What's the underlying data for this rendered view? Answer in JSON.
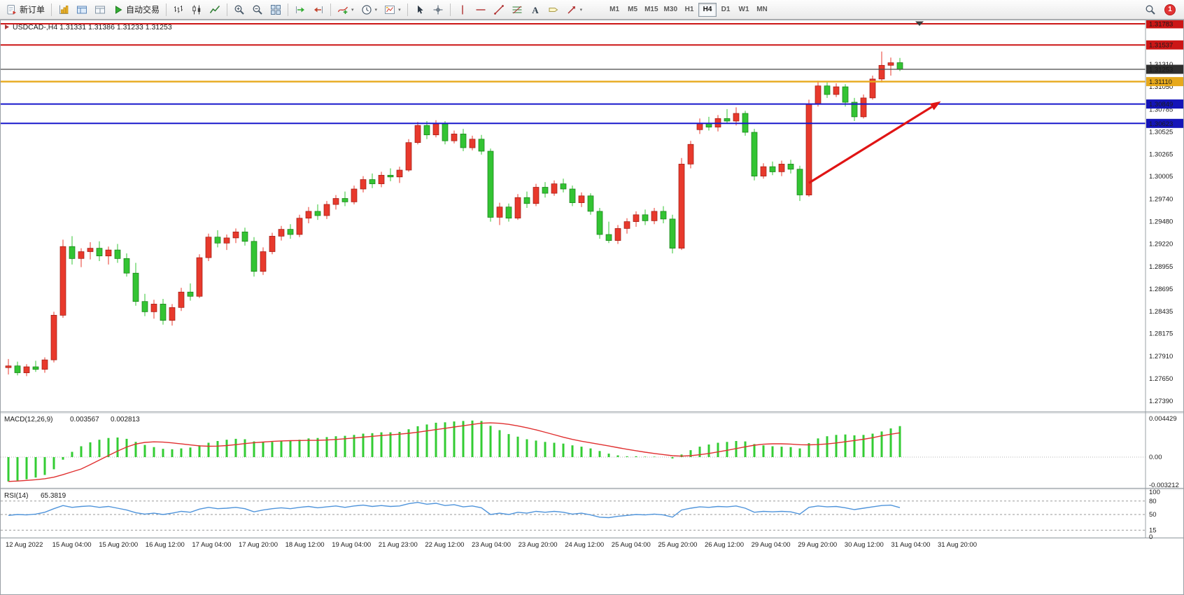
{
  "toolbar": {
    "new_order_label": "新订单",
    "autotrading_label": "自动交易",
    "timeframes": {
      "options": [
        "M1",
        "M5",
        "M15",
        "M30",
        "H1",
        "H4",
        "D1",
        "W1",
        "MN"
      ],
      "active": "H4"
    },
    "notification_count": "1",
    "icons": [
      "new-order",
      "new-chart",
      "profiles",
      "data-window",
      "auto-trading",
      "bar-chart",
      "candlesticks",
      "line-chart",
      "zoom-in",
      "zoom-out",
      "tile-windows",
      "auto-scroll",
      "chart-shift",
      "indicators",
      "periods",
      "templates",
      "cursor",
      "crosshair",
      "vertical-line",
      "horizontal-line",
      "trendline",
      "fibonacci",
      "text",
      "label",
      "arrows",
      "search"
    ]
  },
  "chart_data": {
    "type": "candlestick",
    "symbol": "USDCAD-",
    "period": "H4",
    "title_text": "USDCAD-,H4",
    "ohlc_text": "1.31331 1.31386 1.31233 1.31253",
    "colors": {
      "background": "#ffffff",
      "candle_up": "#e8392c",
      "candle_down": "#33c433",
      "candle_up_border": "#9c1810",
      "candle_down_border": "#157a15",
      "macd_hist": "#33cc33",
      "macd_value_color": "#1e8e1e",
      "macd_signal": "#e03030",
      "rsi_line": "#4f94db",
      "arrow": "#e01414"
    },
    "price_axis": {
      "grid_labels": [
        "1.31310",
        "1.31050",
        "1.30785",
        "1.30525",
        "1.30265",
        "1.30005",
        "1.29740",
        "1.29480",
        "1.29220",
        "1.28955",
        "1.28695",
        "1.28435",
        "1.28175",
        "1.27910",
        "1.27650",
        "1.27390"
      ]
    },
    "hlines": [
      {
        "name": "resistance-upper",
        "price": 1.31783,
        "color": "#cc1616",
        "width": 2,
        "tag_bg": "#cc1616",
        "tag_fg": "#ffffff"
      },
      {
        "name": "resistance-lower",
        "price": 1.31537,
        "color": "#cc1616",
        "width": 2,
        "tag_bg": "#cc1616",
        "tag_fg": "#ffffff"
      },
      {
        "name": "current-price",
        "price": 1.31253,
        "color": "#484848",
        "width": 1.2,
        "tag_bg": "#2f2f2f",
        "tag_fg": "#ffffff"
      },
      {
        "name": "pivot-orange",
        "price": 1.3111,
        "color": "#e7a91c",
        "width": 2.4,
        "tag_bg": "#e7a91c",
        "tag_fg": "#1a1a1a"
      },
      {
        "name": "support-upper",
        "price": 1.30849,
        "color": "#1818cc",
        "width": 2,
        "tag_bg": "#1414b8",
        "tag_fg": "#ffffff"
      },
      {
        "name": "support-lower",
        "price": 1.30623,
        "color": "#1818cc",
        "width": 2,
        "tag_bg": "#1414b8",
        "tag_fg": "#ffffff"
      }
    ],
    "trend_arrow": {
      "from_index": 88,
      "from_price": 1.2993,
      "to_index": 102.5,
      "to_price": 1.3088
    },
    "candles": [
      [
        1.2778,
        1.2788,
        1.277,
        1.278
      ],
      [
        1.278,
        1.2785,
        1.2769,
        1.2772
      ],
      [
        1.2772,
        1.2782,
        1.2768,
        1.2779
      ],
      [
        1.2779,
        1.2786,
        1.2773,
        1.2776
      ],
      [
        1.2776,
        1.279,
        1.2772,
        1.2787
      ],
      [
        1.2787,
        1.2843,
        1.2784,
        1.2839
      ],
      [
        1.2839,
        1.2927,
        1.2836,
        1.2919
      ],
      [
        1.2919,
        1.2931,
        1.2898,
        1.2905
      ],
      [
        1.2905,
        1.2917,
        1.2895,
        1.2913
      ],
      [
        1.2913,
        1.2924,
        1.2904,
        1.2917
      ],
      [
        1.2917,
        1.2925,
        1.2902,
        1.2908
      ],
      [
        1.2908,
        1.2919,
        1.2898,
        1.2915
      ],
      [
        1.2915,
        1.2922,
        1.29,
        1.2905
      ],
      [
        1.2905,
        1.2911,
        1.2884,
        1.2888
      ],
      [
        1.2888,
        1.29,
        1.285,
        1.2855
      ],
      [
        1.2855,
        1.2864,
        1.2838,
        1.2843
      ],
      [
        1.2843,
        1.2857,
        1.2835,
        1.2852
      ],
      [
        1.2852,
        1.2858,
        1.2828,
        1.2833
      ],
      [
        1.2833,
        1.2852,
        1.2827,
        1.2848
      ],
      [
        1.2848,
        1.2871,
        1.2844,
        1.2866
      ],
      [
        1.2866,
        1.2876,
        1.2856,
        1.2861
      ],
      [
        1.2861,
        1.291,
        1.2859,
        1.2906
      ],
      [
        1.2906,
        1.2934,
        1.2902,
        1.293
      ],
      [
        1.293,
        1.2938,
        1.2918,
        1.2923
      ],
      [
        1.2923,
        1.2933,
        1.2915,
        1.2929
      ],
      [
        1.2929,
        1.294,
        1.2923,
        1.2936
      ],
      [
        1.2936,
        1.2941,
        1.292,
        1.2925
      ],
      [
        1.2925,
        1.293,
        1.2884,
        1.289
      ],
      [
        1.289,
        1.2918,
        1.2886,
        1.2913
      ],
      [
        1.2913,
        1.2935,
        1.291,
        1.2931
      ],
      [
        1.2931,
        1.2943,
        1.2926,
        1.2939
      ],
      [
        1.2939,
        1.2945,
        1.2928,
        1.2933
      ],
      [
        1.2933,
        1.2956,
        1.293,
        1.2952
      ],
      [
        1.2952,
        1.2965,
        1.2946,
        1.296
      ],
      [
        1.296,
        1.2968,
        1.295,
        1.2955
      ],
      [
        1.2955,
        1.2972,
        1.2951,
        1.2968
      ],
      [
        1.2968,
        1.2979,
        1.2962,
        1.2975
      ],
      [
        1.2975,
        1.2983,
        1.2966,
        1.2971
      ],
      [
        1.2971,
        1.299,
        1.2968,
        1.2986
      ],
      [
        1.2986,
        1.3001,
        1.2982,
        1.2997
      ],
      [
        1.2997,
        1.3004,
        1.2987,
        1.2992
      ],
      [
        1.2992,
        1.3006,
        1.2988,
        1.3002
      ],
      [
        1.3002,
        1.301,
        1.2995,
        1.3
      ],
      [
        1.3,
        1.3012,
        1.2993,
        1.3008
      ],
      [
        1.3008,
        1.3044,
        1.3006,
        1.304
      ],
      [
        1.304,
        1.3064,
        1.3038,
        1.306
      ],
      [
        1.306,
        1.3065,
        1.3044,
        1.3049
      ],
      [
        1.3049,
        1.3066,
        1.3046,
        1.3062
      ],
      [
        1.3062,
        1.3065,
        1.3038,
        1.3042
      ],
      [
        1.3042,
        1.3054,
        1.3039,
        1.305
      ],
      [
        1.305,
        1.3056,
        1.303,
        1.3034
      ],
      [
        1.3034,
        1.3048,
        1.3031,
        1.3044
      ],
      [
        1.3044,
        1.3049,
        1.3026,
        1.303
      ],
      [
        1.303,
        1.3033,
        1.2948,
        1.2953
      ],
      [
        1.2953,
        1.297,
        1.2944,
        1.2965
      ],
      [
        1.2965,
        1.2969,
        1.2948,
        1.2952
      ],
      [
        1.2952,
        1.298,
        1.295,
        1.2976
      ],
      [
        1.2976,
        1.2983,
        1.2964,
        1.2969
      ],
      [
        1.2969,
        1.2992,
        1.2966,
        1.2988
      ],
      [
        1.2988,
        1.2994,
        1.2976,
        1.2981
      ],
      [
        1.2981,
        1.2996,
        1.2978,
        1.2992
      ],
      [
        1.2992,
        1.2998,
        1.2982,
        1.2986
      ],
      [
        1.2986,
        1.299,
        1.2966,
        1.297
      ],
      [
        1.297,
        1.2982,
        1.2965,
        1.2978
      ],
      [
        1.2978,
        1.2981,
        1.2956,
        1.296
      ],
      [
        1.296,
        1.2964,
        1.2928,
        1.2933
      ],
      [
        1.2933,
        1.2948,
        1.2923,
        1.2926
      ],
      [
        1.2926,
        1.2944,
        1.2922,
        1.294
      ],
      [
        1.294,
        1.2952,
        1.2934,
        1.2948
      ],
      [
        1.2948,
        1.296,
        1.2942,
        1.2956
      ],
      [
        1.2956,
        1.2962,
        1.2944,
        1.2949
      ],
      [
        1.2949,
        1.2964,
        1.2945,
        1.296
      ],
      [
        1.296,
        1.2966,
        1.2946,
        1.2951
      ],
      [
        1.2951,
        1.2956,
        1.2911,
        1.2917
      ],
      [
        1.2917,
        1.3022,
        1.2915,
        1.3015
      ],
      [
        1.3015,
        1.3042,
        1.301,
        1.3038
      ],
      [
        1.3055,
        1.3068,
        1.305,
        1.3062
      ],
      [
        1.3062,
        1.307,
        1.3054,
        1.3058
      ],
      [
        1.3058,
        1.3072,
        1.3053,
        1.3068
      ],
      [
        1.3068,
        1.3079,
        1.3062,
        1.3065
      ],
      [
        1.3065,
        1.3081,
        1.306,
        1.3074
      ],
      [
        1.3074,
        1.3077,
        1.3048,
        1.3052
      ],
      [
        1.3052,
        1.3056,
        1.2996,
        1.3001
      ],
      [
        1.3001,
        1.3016,
        1.2998,
        1.3012
      ],
      [
        1.3012,
        1.3018,
        1.3002,
        1.3006
      ],
      [
        1.3006,
        1.3019,
        1.3001,
        1.3015
      ],
      [
        1.3015,
        1.302,
        1.3004,
        1.3009
      ],
      [
        1.3009,
        1.3013,
        1.2972,
        1.2979
      ],
      [
        1.2979,
        1.309,
        1.2977,
        1.3085
      ],
      [
        1.3085,
        1.3112,
        1.3082,
        1.3106
      ],
      [
        1.3106,
        1.311,
        1.3092,
        1.3096
      ],
      [
        1.3096,
        1.3109,
        1.3093,
        1.3105
      ],
      [
        1.3105,
        1.3108,
        1.3082,
        1.3087
      ],
      [
        1.3087,
        1.3092,
        1.3065,
        1.307
      ],
      [
        1.307,
        1.3096,
        1.3068,
        1.3092
      ],
      [
        1.3092,
        1.3118,
        1.309,
        1.3114
      ],
      [
        1.3114,
        1.3146,
        1.311,
        1.313
      ],
      [
        1.313,
        1.3139,
        1.3118,
        1.3133
      ],
      [
        1.31331,
        1.31386,
        1.31233,
        1.31253
      ]
    ],
    "macd": {
      "name": "MACD(12,26,9)",
      "value_main": "0.003567",
      "value_signal": "0.002813",
      "scale_labels": [
        "0.004429",
        "0.00",
        "-0.003212"
      ],
      "scale_values": [
        0.004429,
        0,
        -0.003212
      ],
      "histogram": [
        -0.0028,
        -0.0027,
        -0.00255,
        -0.00235,
        -0.00205,
        -0.0014,
        -0.0003,
        0.0006,
        0.00125,
        0.0017,
        0.002,
        0.0022,
        0.00225,
        0.0021,
        0.00175,
        0.0014,
        0.00115,
        0.00095,
        0.0009,
        0.001,
        0.0011,
        0.00135,
        0.00165,
        0.00185,
        0.002,
        0.0021,
        0.00205,
        0.0018,
        0.0017,
        0.00175,
        0.00185,
        0.0019,
        0.002,
        0.00215,
        0.0022,
        0.0023,
        0.0024,
        0.00245,
        0.00255,
        0.0027,
        0.00275,
        0.00285,
        0.00285,
        0.0029,
        0.0032,
        0.00355,
        0.00375,
        0.00395,
        0.004,
        0.0041,
        0.00415,
        0.0042,
        0.00415,
        0.0036,
        0.0031,
        0.00265,
        0.00235,
        0.00205,
        0.0019,
        0.00175,
        0.00165,
        0.00155,
        0.00135,
        0.0012,
        0.001,
        0.0007,
        0.0004,
        0.0002,
        0.0001,
        0.0001,
        5e-05,
        5e-05,
        0,
        -0.00015,
        0.0003,
        0.0008,
        0.0012,
        0.00145,
        0.00165,
        0.00175,
        0.00185,
        0.0018,
        0.0015,
        0.00135,
        0.00125,
        0.0012,
        0.00115,
        0.001,
        0.0016,
        0.00215,
        0.0024,
        0.00255,
        0.0026,
        0.0025,
        0.00255,
        0.0027,
        0.00295,
        0.0033,
        0.00357
      ]
    },
    "rsi": {
      "name": "RSI(14)",
      "value": "65.3819",
      "scale_labels": [
        "100",
        "80",
        "50",
        "15",
        "0"
      ],
      "scale_values": [
        100,
        80,
        50,
        15,
        0
      ],
      "levels": [
        80,
        50,
        15
      ],
      "values": [
        48,
        50,
        49,
        51,
        55,
        63,
        70,
        66,
        68,
        69,
        66,
        68,
        64,
        60,
        54,
        51,
        53,
        50,
        53,
        57,
        55,
        62,
        66,
        63,
        64,
        66,
        63,
        56,
        60,
        63,
        65,
        63,
        66,
        68,
        65,
        67,
        69,
        66,
        69,
        71,
        68,
        70,
        68,
        69,
        74,
        77,
        73,
        75,
        70,
        72,
        67,
        69,
        65,
        50,
        53,
        50,
        55,
        53,
        57,
        55,
        57,
        55,
        51,
        53,
        49,
        44,
        43,
        46,
        48,
        50,
        49,
        51,
        49,
        44,
        60,
        64,
        67,
        66,
        68,
        67,
        69,
        64,
        55,
        57,
        56,
        57,
        56,
        51,
        66,
        69,
        67,
        68,
        65,
        61,
        64,
        67,
        70,
        71,
        65.38
      ]
    },
    "time_axis": {
      "labels": [
        "12 Aug 2022",
        "15 Aug 04:00",
        "15 Aug 20:00",
        "16 Aug 12:00",
        "17 Aug 04:00",
        "17 Aug 20:00",
        "18 Aug 12:00",
        "19 Aug 04:00",
        "21 Aug 23:00",
        "22 Aug 12:00",
        "23 Aug 04:00",
        "23 Aug 20:00",
        "24 Aug 12:00",
        "25 Aug 04:00",
        "25 Aug 20:00",
        "26 Aug 12:00",
        "29 Aug 04:00",
        "29 Aug 20:00",
        "30 Aug 12:00",
        "31 Aug 04:00",
        "31 Aug 20:00"
      ]
    }
  }
}
